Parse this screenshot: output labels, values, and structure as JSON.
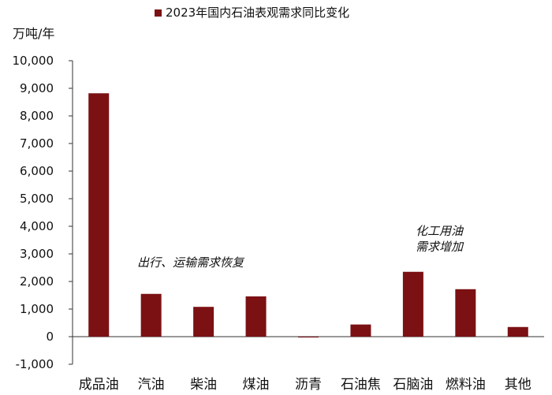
{
  "chart_data": {
    "type": "bar",
    "title": "2023年国内石油表观需求同比变化",
    "ylabel": "万吨/年",
    "xlabel": "",
    "ylim": [
      -1000,
      10000
    ],
    "ytick_step": 1000,
    "ytick_labels": [
      "-1,000",
      "0",
      "1,000",
      "2,000",
      "3,000",
      "4,000",
      "5,000",
      "6,000",
      "7,000",
      "8,000",
      "9,000",
      "10,000"
    ],
    "categories": [
      "成品油",
      "汽油",
      "柴油",
      "煤油",
      "沥青",
      "石油焦",
      "石脑油",
      "燃料油",
      "其他"
    ],
    "series": [
      {
        "name": "2023年国内石油表观需求同比变化",
        "values": [
          8820,
          1550,
          1080,
          1460,
          -30,
          440,
          2350,
          1720,
          350
        ]
      }
    ],
    "legend": "top",
    "grid": false,
    "bar_color": "#7b1113",
    "annotations": [
      {
        "text": "出行、运输需求恢复"
      },
      {
        "lines": [
          "化工用油",
          "需求增加"
        ]
      }
    ]
  }
}
